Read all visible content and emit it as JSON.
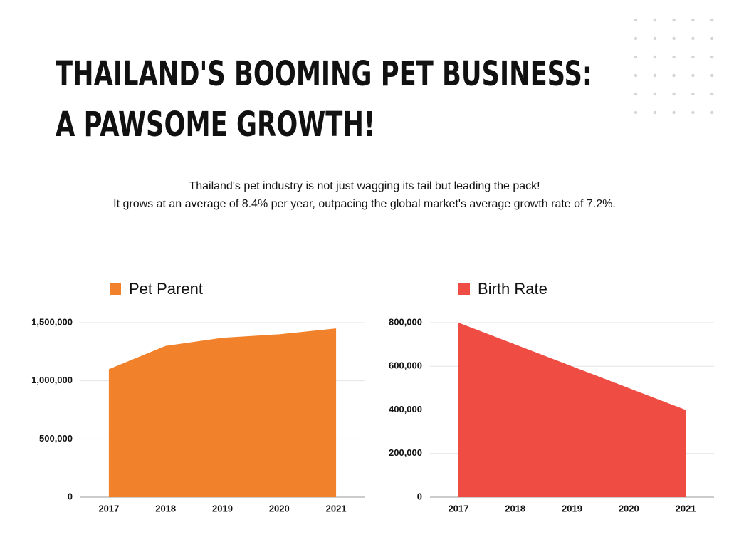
{
  "title": [
    "THAILAND'S BOOMING PET BUSINESS:",
    "A PAWSOME GROWTH!"
  ],
  "subtitle": [
    "Thailand's pet industry is not just wagging its tail but leading the pack!",
    "It grows at an average of 8.4% per year, outpacing the global market's average growth rate of 7.2%."
  ],
  "chart_data": [
    {
      "type": "area",
      "categories": [
        "2017",
        "2018",
        "2019",
        "2020",
        "2021"
      ],
      "series": [
        {
          "name": "Pet Parent",
          "color": "#f2812b",
          "values": [
            1100000,
            1300000,
            1370000,
            1400000,
            1450000
          ]
        }
      ],
      "ylim": [
        0,
        1500000
      ],
      "yticks": [
        0,
        {
          "value": 500000,
          "label": "500,000"
        },
        {
          "value": 1000000,
          "label": "1,000,000"
        },
        {
          "value": 1500000,
          "label": "1,500,000"
        }
      ],
      "grid": true,
      "legend": "top"
    },
    {
      "type": "area",
      "categories": [
        "2017",
        "2018",
        "2019",
        "2020",
        "2021"
      ],
      "series": [
        {
          "name": "Birth Rate",
          "color": "#ef4d44",
          "values": [
            800000,
            700000,
            600000,
            500000,
            400000
          ]
        }
      ],
      "ylim": [
        0,
        800000
      ],
      "yticks": [
        0,
        {
          "value": 200000,
          "label": "200,000"
        },
        {
          "value": 400000,
          "label": "400,000"
        },
        {
          "value": 600000,
          "label": "600,000"
        },
        {
          "value": 800000,
          "label": "800,000"
        }
      ],
      "grid": true,
      "legend": "top"
    }
  ]
}
